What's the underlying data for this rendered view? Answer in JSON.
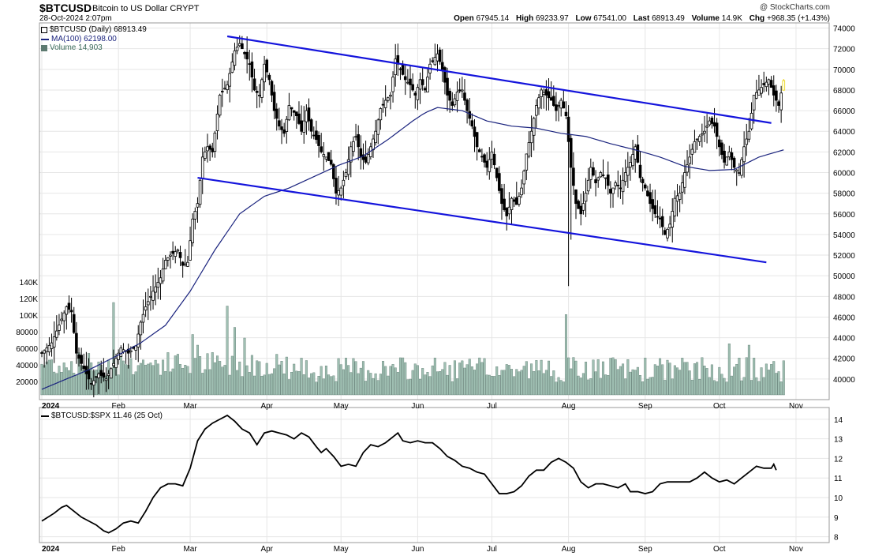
{
  "header": {
    "symbol": "$BTCUSD",
    "name": "Bitcoin to US Dollar  CRYPT",
    "date": "28-Oct-2024 2:07pm",
    "copyright": "@ StockCharts.com",
    "open_label": "Open",
    "open": "67945.14",
    "high_label": "High",
    "high": "69233.97",
    "low_label": "Low",
    "low": "67541.00",
    "last_label": "Last",
    "last": "68913.49",
    "volume_label": "Volume",
    "volume": "14.9K",
    "chg_label": "Chg",
    "chg": "+968.35 (+1.43%)"
  },
  "legend": {
    "price": "$BTCUSD (Daily) 68913.49",
    "ma": "MA(100) 62198.00",
    "volume": "Volume 14,903",
    "ratio": "$BTCUSD:$SPX 11.46 (25 Oct)"
  },
  "colors": {
    "candle": "#000000",
    "ma": "#1a237e",
    "trend": "#1414dc",
    "volume": "#9fbfb2",
    "volume_edge": "#5d7a70",
    "last_candle": "#e8d000",
    "grid": "#e6e6e6"
  },
  "chart_data": [
    {
      "type": "candlestick",
      "title": "$BTCUSD",
      "y_ticks": [
        40000,
        42000,
        44000,
        46000,
        48000,
        50000,
        52000,
        54000,
        56000,
        58000,
        60000,
        62000,
        64000,
        66000,
        68000,
        70000,
        72000,
        74000
      ],
      "ylim": [
        38000,
        74500
      ],
      "volume_ticks": [
        "20000",
        "40000",
        "60000",
        "80000",
        "100K",
        "120K",
        "140K"
      ],
      "x_ticks": [
        "2024",
        "Feb",
        "Mar",
        "Apr",
        "May",
        "Jun",
        "Jul",
        "Aug",
        "Sep",
        "Oct",
        "Nov"
      ],
      "x_tick_days": [
        0,
        31,
        60,
        91,
        121,
        152,
        182,
        213,
        244,
        274,
        305
      ],
      "close_path": [
        [
          0,
          42500
        ],
        [
          4,
          43500
        ],
        [
          8,
          45800
        ],
        [
          10,
          47000
        ],
        [
          12,
          46500
        ],
        [
          14,
          42500
        ],
        [
          17,
          41000
        ],
        [
          20,
          39500
        ],
        [
          23,
          40500
        ],
        [
          26,
          40000
        ],
        [
          28,
          41000
        ],
        [
          30,
          42000
        ],
        [
          32,
          43000
        ],
        [
          35,
          42500
        ],
        [
          38,
          43200
        ],
        [
          40,
          45500
        ],
        [
          42,
          47000
        ],
        [
          45,
          48500
        ],
        [
          48,
          49800
        ],
        [
          50,
          51500
        ],
        [
          52,
          52000
        ],
        [
          55,
          52500
        ],
        [
          57,
          51000
        ],
        [
          59,
          51300
        ],
        [
          61,
          55500
        ],
        [
          63,
          57000
        ],
        [
          65,
          61500
        ],
        [
          67,
          62500
        ],
        [
          69,
          62000
        ],
        [
          72,
          67500
        ],
        [
          75,
          68500
        ],
        [
          78,
          71800
        ],
        [
          80,
          72500
        ],
        [
          82,
          71500
        ],
        [
          84,
          70500
        ],
        [
          86,
          68000
        ],
        [
          88,
          67500
        ],
        [
          90,
          70500
        ],
        [
          92,
          69000
        ],
        [
          94,
          66000
        ],
        [
          96,
          64500
        ],
        [
          98,
          63800
        ],
        [
          100,
          66500
        ],
        [
          103,
          65500
        ],
        [
          105,
          64000
        ],
        [
          107,
          66000
        ],
        [
          109,
          64000
        ],
        [
          111,
          63200
        ],
        [
          113,
          62000
        ],
        [
          115,
          61500
        ],
        [
          117,
          60800
        ],
        [
          119,
          58000
        ],
        [
          121,
          58500
        ],
        [
          123,
          60000
        ],
        [
          125,
          62500
        ],
        [
          127,
          63500
        ],
        [
          129,
          61500
        ],
        [
          131,
          61000
        ],
        [
          133,
          62500
        ],
        [
          135,
          64000
        ],
        [
          137,
          66200
        ],
        [
          139,
          67000
        ],
        [
          141,
          67500
        ],
        [
          143,
          71000
        ],
        [
          145,
          70000
        ],
        [
          147,
          69000
        ],
        [
          149,
          68500
        ],
        [
          151,
          67500
        ],
        [
          153,
          69000
        ],
        [
          155,
          68000
        ],
        [
          157,
          70500
        ],
        [
          160,
          71500
        ],
        [
          162,
          70000
        ],
        [
          164,
          67500
        ],
        [
          166,
          66500
        ],
        [
          168,
          67800
        ],
        [
          170,
          68000
        ],
        [
          172,
          66000
        ],
        [
          174,
          64500
        ],
        [
          176,
          62500
        ],
        [
          178,
          61500
        ],
        [
          180,
          60500
        ],
        [
          182,
          62000
        ],
        [
          184,
          59500
        ],
        [
          186,
          57000
        ],
        [
          188,
          55800
        ],
        [
          190,
          57500
        ],
        [
          192,
          56900
        ],
        [
          194,
          58500
        ],
        [
          196,
          61800
        ],
        [
          198,
          64000
        ],
        [
          200,
          66500
        ],
        [
          202,
          68000
        ],
        [
          204,
          67500
        ],
        [
          206,
          67000
        ],
        [
          208,
          66000
        ],
        [
          210,
          67000
        ],
        [
          212,
          65500
        ],
        [
          214,
          60500
        ],
        [
          216,
          57000
        ],
        [
          218,
          56000
        ],
        [
          220,
          58000
        ],
        [
          222,
          60500
        ],
        [
          224,
          59000
        ],
        [
          226,
          60000
        ],
        [
          228,
          59500
        ],
        [
          230,
          58000
        ],
        [
          232,
          59000
        ],
        [
          234,
          58500
        ],
        [
          236,
          60000
        ],
        [
          238,
          61000
        ],
        [
          240,
          62500
        ],
        [
          242,
          59500
        ],
        [
          244,
          58500
        ],
        [
          246,
          57000
        ],
        [
          248,
          56000
        ],
        [
          250,
          55500
        ],
        [
          252,
          54000
        ],
        [
          254,
          55000
        ],
        [
          256,
          57500
        ],
        [
          258,
          58000
        ],
        [
          260,
          60000
        ],
        [
          262,
          61500
        ],
        [
          264,
          63000
        ],
        [
          266,
          63500
        ],
        [
          268,
          64000
        ],
        [
          270,
          65000
        ],
        [
          272,
          64500
        ],
        [
          274,
          62500
        ],
        [
          276,
          61000
        ],
        [
          278,
          62000
        ],
        [
          280,
          60500
        ],
        [
          282,
          60000
        ],
        [
          284,
          62500
        ],
        [
          286,
          64000
        ],
        [
          288,
          67500
        ],
        [
          290,
          68000
        ],
        [
          292,
          68500
        ],
        [
          294,
          69000
        ],
        [
          296,
          67500
        ],
        [
          298,
          66500
        ],
        [
          300,
          68913
        ]
      ],
      "ma_path": [
        [
          0,
          39000
        ],
        [
          10,
          40000
        ],
        [
          20,
          41000
        ],
        [
          30,
          42200
        ],
        [
          40,
          43500
        ],
        [
          50,
          45200
        ],
        [
          60,
          48500
        ],
        [
          70,
          52500
        ],
        [
          80,
          56000
        ],
        [
          90,
          57700
        ],
        [
          100,
          58500
        ],
        [
          110,
          59600
        ],
        [
          120,
          60700
        ],
        [
          130,
          61600
        ],
        [
          140,
          63200
        ],
        [
          150,
          65000
        ],
        [
          155,
          65800
        ],
        [
          160,
          66300
        ],
        [
          170,
          66000
        ],
        [
          180,
          65000
        ],
        [
          190,
          64500
        ],
        [
          200,
          64300
        ],
        [
          210,
          63800
        ],
        [
          220,
          63500
        ],
        [
          230,
          62800
        ],
        [
          240,
          62200
        ],
        [
          250,
          61500
        ],
        [
          260,
          60600
        ],
        [
          270,
          60200
        ],
        [
          280,
          60300
        ],
        [
          290,
          61500
        ],
        [
          300,
          62200
        ]
      ],
      "upper_trend": [
        [
          75,
          73200
        ],
        [
          295,
          64800
        ]
      ],
      "lower_trend": [
        [
          63,
          59500
        ],
        [
          293,
          51300
        ]
      ],
      "ratio": {
        "y_ticks": [
          8,
          9,
          10,
          11,
          12,
          13,
          14
        ],
        "ylim": [
          7.7,
          14.6
        ],
        "path": [
          [
            0,
            8.8
          ],
          [
            5,
            9.2
          ],
          [
            8,
            9.5
          ],
          [
            10,
            9.6
          ],
          [
            13,
            9.3
          ],
          [
            16,
            9.0
          ],
          [
            19,
            8.8
          ],
          [
            22,
            8.6
          ],
          [
            25,
            8.3
          ],
          [
            27,
            8.2
          ],
          [
            30,
            8.4
          ],
          [
            33,
            8.7
          ],
          [
            36,
            8.8
          ],
          [
            39,
            8.7
          ],
          [
            42,
            9.3
          ],
          [
            45,
            10.0
          ],
          [
            48,
            10.5
          ],
          [
            51,
            10.7
          ],
          [
            54,
            10.7
          ],
          [
            57,
            10.6
          ],
          [
            60,
            11.5
          ],
          [
            63,
            12.9
          ],
          [
            66,
            13.5
          ],
          [
            69,
            13.8
          ],
          [
            72,
            14.0
          ],
          [
            75,
            14.2
          ],
          [
            78,
            13.9
          ],
          [
            81,
            13.5
          ],
          [
            84,
            13.3
          ],
          [
            87,
            12.7
          ],
          [
            90,
            13.3
          ],
          [
            93,
            13.4
          ],
          [
            96,
            13.3
          ],
          [
            99,
            13.2
          ],
          [
            102,
            13.0
          ],
          [
            105,
            13.3
          ],
          [
            108,
            13.1
          ],
          [
            111,
            12.6
          ],
          [
            113,
            12.3
          ],
          [
            115,
            12.5
          ],
          [
            118,
            12.1
          ],
          [
            121,
            11.6
          ],
          [
            124,
            11.7
          ],
          [
            127,
            11.6
          ],
          [
            130,
            12.3
          ],
          [
            133,
            12.7
          ],
          [
            136,
            12.6
          ],
          [
            139,
            12.8
          ],
          [
            142,
            13.1
          ],
          [
            144,
            13.3
          ],
          [
            146,
            12.9
          ],
          [
            149,
            12.8
          ],
          [
            152,
            12.9
          ],
          [
            155,
            12.8
          ],
          [
            158,
            12.8
          ],
          [
            161,
            12.5
          ],
          [
            164,
            12.1
          ],
          [
            167,
            11.9
          ],
          [
            170,
            11.6
          ],
          [
            173,
            11.5
          ],
          [
            176,
            11.3
          ],
          [
            179,
            11.2
          ],
          [
            182,
            10.7
          ],
          [
            185,
            10.2
          ],
          [
            188,
            10.2
          ],
          [
            191,
            10.3
          ],
          [
            194,
            10.6
          ],
          [
            197,
            11.1
          ],
          [
            200,
            11.4
          ],
          [
            203,
            11.4
          ],
          [
            206,
            11.8
          ],
          [
            209,
            12.0
          ],
          [
            212,
            11.8
          ],
          [
            215,
            11.5
          ],
          [
            218,
            10.8
          ],
          [
            221,
            10.5
          ],
          [
            224,
            10.7
          ],
          [
            227,
            10.7
          ],
          [
            230,
            10.6
          ],
          [
            233,
            10.5
          ],
          [
            236,
            10.7
          ],
          [
            238,
            10.3
          ],
          [
            241,
            10.3
          ],
          [
            244,
            10.2
          ],
          [
            247,
            10.3
          ],
          [
            250,
            10.7
          ],
          [
            253,
            10.8
          ],
          [
            256,
            10.8
          ],
          [
            259,
            10.8
          ],
          [
            262,
            10.8
          ],
          [
            265,
            11.0
          ],
          [
            268,
            11.3
          ],
          [
            271,
            11.0
          ],
          [
            274,
            10.8
          ],
          [
            277,
            10.9
          ],
          [
            280,
            10.7
          ],
          [
            283,
            11.0
          ],
          [
            286,
            11.3
          ],
          [
            289,
            11.6
          ],
          [
            292,
            11.5
          ],
          [
            295,
            11.5
          ],
          [
            296,
            11.7
          ],
          [
            297,
            11.4
          ]
        ]
      }
    }
  ]
}
